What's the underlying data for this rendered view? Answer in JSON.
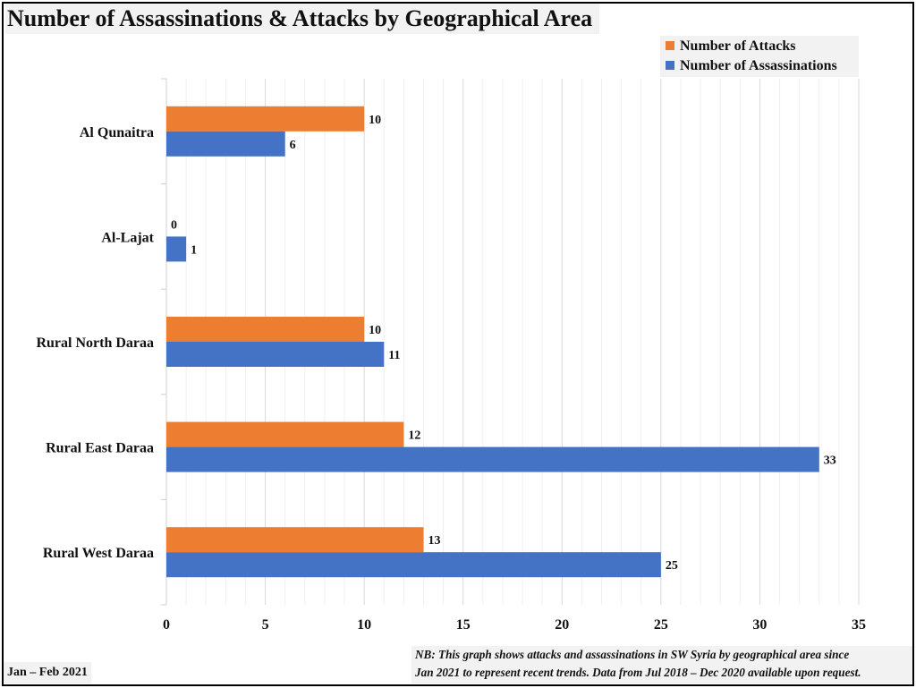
{
  "title": "Number of Assassinations & Attacks by Geographical Area",
  "period_label": "Jan – Feb 2021",
  "note_lines": [
    "NB: This graph shows attacks and assassinations in SW Syria by geographical area since",
    "Jan 2021 to represent recent trends. Data from Jul 2018 – Dec 2020 available upon request."
  ],
  "colors": {
    "attacks": "#ED7D31",
    "assassinations": "#4472C4"
  },
  "chart_data": {
    "type": "bar",
    "orientation": "horizontal",
    "categories": [
      "Al Qunaitra",
      "Al-Lajat",
      "Rural North Daraa",
      "Rural East Daraa",
      "Rural West Daraa"
    ],
    "series": [
      {
        "name": "Number of Attacks",
        "values": [
          10,
          0,
          10,
          12,
          13
        ]
      },
      {
        "name": "Number of Assassinations",
        "values": [
          6,
          1,
          11,
          33,
          25
        ]
      }
    ],
    "xlim": [
      0,
      35
    ],
    "xticks": [
      0,
      5,
      10,
      15,
      20,
      25,
      30,
      35
    ],
    "grid": "vertical",
    "legend_position": "top-right"
  }
}
